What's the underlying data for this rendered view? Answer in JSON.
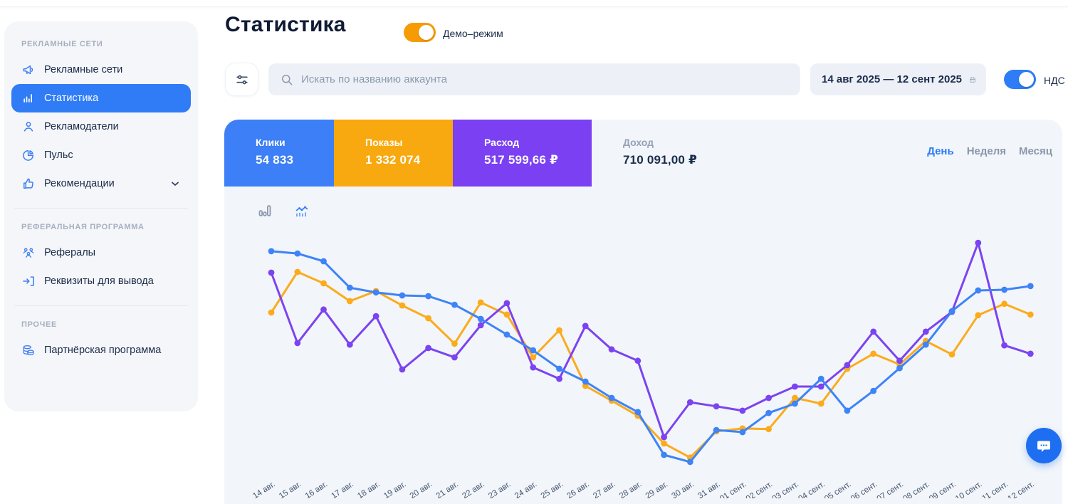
{
  "header": {
    "title": "Статистика",
    "demo_toggle_label": "Демо–режим",
    "demo_toggle_on": true
  },
  "sidebar": {
    "sections": [
      {
        "label": "РЕКЛАМНЫЕ СЕТИ",
        "items": [
          {
            "label": "Рекламные сети",
            "icon": "megaphone-icon",
            "active": false
          },
          {
            "label": "Статистика",
            "icon": "bar-chart-icon",
            "active": true
          },
          {
            "label": "Рекламодатели",
            "icon": "person-icon",
            "active": false
          },
          {
            "label": "Пульс",
            "icon": "pie-chart-icon",
            "active": false
          },
          {
            "label": "Рекомендации",
            "icon": "thumbs-up-icon",
            "active": false,
            "has_chevron": true
          }
        ]
      },
      {
        "label": "РЕФЕРАЛЬНАЯ ПРОГРАММА",
        "items": [
          {
            "label": "Рефералы",
            "icon": "people-icon",
            "active": false
          },
          {
            "label": "Реквизиты для вывода",
            "icon": "withdraw-icon",
            "active": false
          }
        ]
      },
      {
        "label": "ПРОЧЕЕ",
        "items": [
          {
            "label": "Партнёрская программа",
            "icon": "coins-icon",
            "active": false
          }
        ]
      }
    ]
  },
  "toolbar": {
    "search_placeholder": "Искать по названию аккаунта",
    "date_range": "14 авг 2025 — 12 сент 2025",
    "vat_label": "НДС",
    "vat_toggle_on": true
  },
  "stats": {
    "cards": [
      {
        "label": "Клики",
        "value": "54 833",
        "color": "#3d7ff7"
      },
      {
        "label": "Показы",
        "value": "1 332 074",
        "color": "#f8a90f"
      },
      {
        "label": "Расход",
        "value": "517 599,66 ₽",
        "color": "#7b40f2"
      },
      {
        "label": "Доход",
        "value": "710 091,00 ₽",
        "color": "transparent"
      }
    ],
    "period_tabs": [
      {
        "label": "День",
        "active": true
      },
      {
        "label": "Неделя",
        "active": false
      },
      {
        "label": "Месяц",
        "active": false
      }
    ]
  },
  "chart_data": {
    "type": "line",
    "title": "",
    "xlabel": "",
    "ylabel": "",
    "grid": false,
    "legend_position": "none",
    "y_axis_visible": false,
    "y_scale_note": "relative units 0-100, no axis labels shown in UI",
    "ylim": [
      0,
      100
    ],
    "x_labels_rotated_deg": -33,
    "categories": [
      "14 авг.",
      "15 авг.",
      "16 авг.",
      "17 авг.",
      "18 авг.",
      "19 авг.",
      "20 авг.",
      "21 авг.",
      "22 авг.",
      "23 авг.",
      "24 авг.",
      "25 авг.",
      "26 авг.",
      "27 авг.",
      "28 авг.",
      "29 авг.",
      "30 авг.",
      "31 авг.",
      "01 сент.",
      "02 сент.",
      "03 сент.",
      "04 сент.",
      "05 сент.",
      "06 сент.",
      "07 сент.",
      "08 сент.",
      "09 сент.",
      "10 сент.",
      "11 сент.",
      "12 сент."
    ],
    "series": [
      {
        "name": "Показы",
        "color": "#fbab1c",
        "values": [
          67.5,
          85.3,
          80.3,
          72.5,
          76.9,
          70.6,
          65.0,
          53.8,
          71.9,
          66.6,
          47.8,
          59.7,
          35.3,
          28.8,
          22.2,
          10.0,
          3.8,
          15.3,
          16.6,
          16.3,
          30.0,
          27.5,
          42.8,
          49.4,
          44.7,
          55.0,
          49.1,
          66.3,
          71.3,
          66.6
        ]
      },
      {
        "name": "Расход",
        "color": "#7c43f0",
        "values": [
          85.0,
          54.1,
          68.8,
          53.4,
          65.9,
          42.5,
          51.9,
          47.8,
          61.9,
          71.6,
          43.4,
          38.4,
          61.6,
          51.3,
          46.3,
          12.8,
          28.1,
          26.3,
          24.4,
          30.0,
          35.0,
          35.0,
          44.4,
          59.1,
          46.3,
          59.1,
          67.8,
          98.1,
          53.1,
          49.4
        ]
      },
      {
        "name": "Клики",
        "color": "#3e83f7",
        "values": [
          94.4,
          93.4,
          90.0,
          78.4,
          76.3,
          75.0,
          74.7,
          70.9,
          64.7,
          57.8,
          50.9,
          42.8,
          37.2,
          30.0,
          23.8,
          5.0,
          1.9,
          15.9,
          15.0,
          23.4,
          27.5,
          38.4,
          24.4,
          33.1,
          43.1,
          53.4,
          68.1,
          77.2,
          77.5,
          79.1
        ]
      }
    ]
  }
}
